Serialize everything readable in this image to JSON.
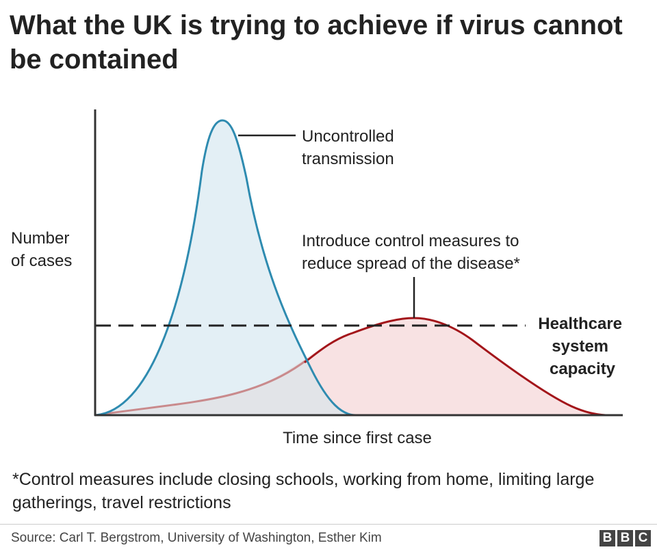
{
  "title": "What the UK is trying to achieve if virus cannot be contained",
  "chart_data": {
    "type": "area",
    "ylabel_lines": [
      "Number",
      "of cases"
    ],
    "xlabel": "Time since first case",
    "annotations": {
      "uncontrolled": [
        "Uncontrolled",
        "transmission"
      ],
      "controlled": [
        "Introduce control measures to",
        "reduce spread of the disease*"
      ],
      "capacity": [
        "Healthcare",
        "system",
        "capacity"
      ]
    },
    "colors": {
      "uncontrolled_stroke": "#2e8bb0",
      "uncontrolled_fill": "#e3eff5",
      "controlled_stroke": "#a3151a",
      "controlled_fill": "#f8e2e3",
      "overlap_fill": "#e2e4e8",
      "capacity_line": "#222222"
    },
    "grid": false
  },
  "footnote": "*Control measures include closing schools, working from home, limiting large gatherings, travel restrictions",
  "source": "Source: Carl T. Bergstrom, University of Washington, Esther Kim",
  "logo": [
    "B",
    "B",
    "C"
  ]
}
